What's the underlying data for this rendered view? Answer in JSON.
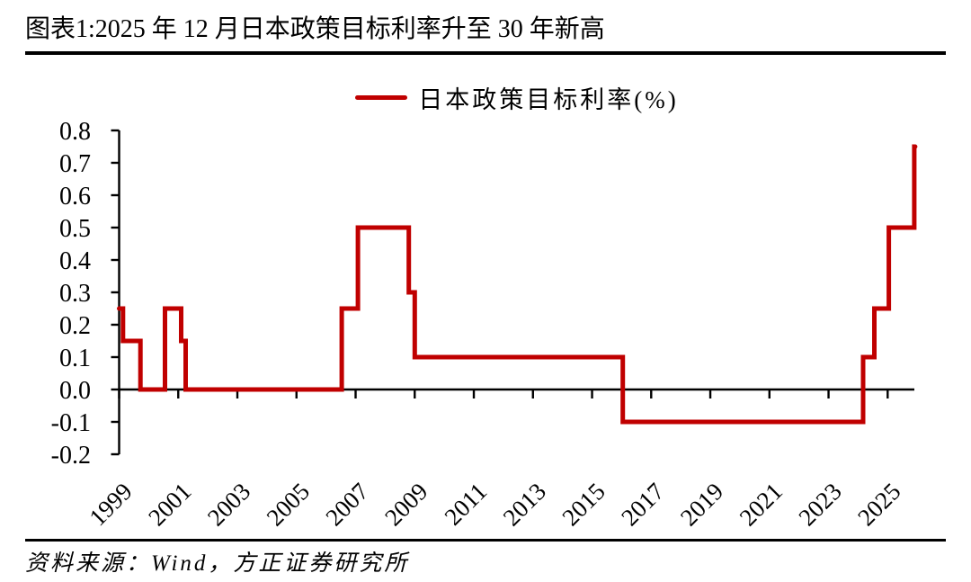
{
  "title": "图表1:2025 年 12 月日本政策目标利率升至 30 年新高",
  "source": "资料来源：Wind，方正证券研究所",
  "colors": {
    "series": "#C00000",
    "axis": "#000000",
    "background": "#FFFFFF"
  },
  "chart_data": {
    "type": "line",
    "subtype": "step",
    "title": "图表1:2025 年 12 月日本政策目标利率升至 30 年新高",
    "series_name": "日本政策目标利率(%)",
    "legend_position": "top-center",
    "grid": false,
    "ylim": [
      -0.2,
      0.8
    ],
    "y_tick_labels": [
      "0.8",
      "0.7",
      "0.6",
      "0.5",
      "0.4",
      "0.3",
      "0.2",
      "0.1",
      "0.0",
      "-0.1",
      "-0.2"
    ],
    "x_tick_labels": [
      "1999",
      "2001",
      "2003",
      "2005",
      "2007",
      "2009",
      "2011",
      "2013",
      "2015",
      "2017",
      "2019",
      "2021",
      "2023",
      "2025"
    ],
    "x_axis_span_years": [
      1999.0,
      2025.95
    ],
    "segments": [
      {
        "start": 1999.0,
        "end": 1999.13,
        "value": 0.25
      },
      {
        "start": 1999.13,
        "end": 1999.72,
        "value": 0.15
      },
      {
        "start": 1999.72,
        "end": 2000.55,
        "value": 0.0
      },
      {
        "start": 2000.55,
        "end": 2001.1,
        "value": 0.25
      },
      {
        "start": 2001.1,
        "end": 2001.25,
        "value": 0.15
      },
      {
        "start": 2001.25,
        "end": 2006.53,
        "value": 0.0
      },
      {
        "start": 2006.53,
        "end": 2007.08,
        "value": 0.25
      },
      {
        "start": 2007.08,
        "end": 2008.8,
        "value": 0.5
      },
      {
        "start": 2008.8,
        "end": 2009.0,
        "value": 0.3
      },
      {
        "start": 2009.0,
        "end": 2016.04,
        "value": 0.1
      },
      {
        "start": 2016.04,
        "end": 2024.17,
        "value": -0.1
      },
      {
        "start": 2024.17,
        "end": 2024.55,
        "value": 0.1
      },
      {
        "start": 2024.55,
        "end": 2025.04,
        "value": 0.25
      },
      {
        "start": 2025.04,
        "end": 2025.9,
        "value": 0.5
      },
      {
        "start": 2025.9,
        "end": 2025.93,
        "value": 0.75
      }
    ],
    "rate_changes": [
      {
        "date": "1999-01",
        "rate": 0.25
      },
      {
        "date": "1999-02",
        "rate": 0.15
      },
      {
        "date": "1999-09",
        "rate": 0.0
      },
      {
        "date": "2000-08",
        "rate": 0.25
      },
      {
        "date": "2001-02",
        "rate": 0.15
      },
      {
        "date": "2001-03",
        "rate": 0.0
      },
      {
        "date": "2006-07",
        "rate": 0.25
      },
      {
        "date": "2007-02",
        "rate": 0.5
      },
      {
        "date": "2008-10",
        "rate": 0.3
      },
      {
        "date": "2008-12",
        "rate": 0.1
      },
      {
        "date": "2016-01",
        "rate": -0.1
      },
      {
        "date": "2024-03",
        "rate": 0.1
      },
      {
        "date": "2024-07",
        "rate": 0.25
      },
      {
        "date": "2025-01",
        "rate": 0.5
      },
      {
        "date": "2025-12",
        "rate": 0.75
      }
    ]
  }
}
